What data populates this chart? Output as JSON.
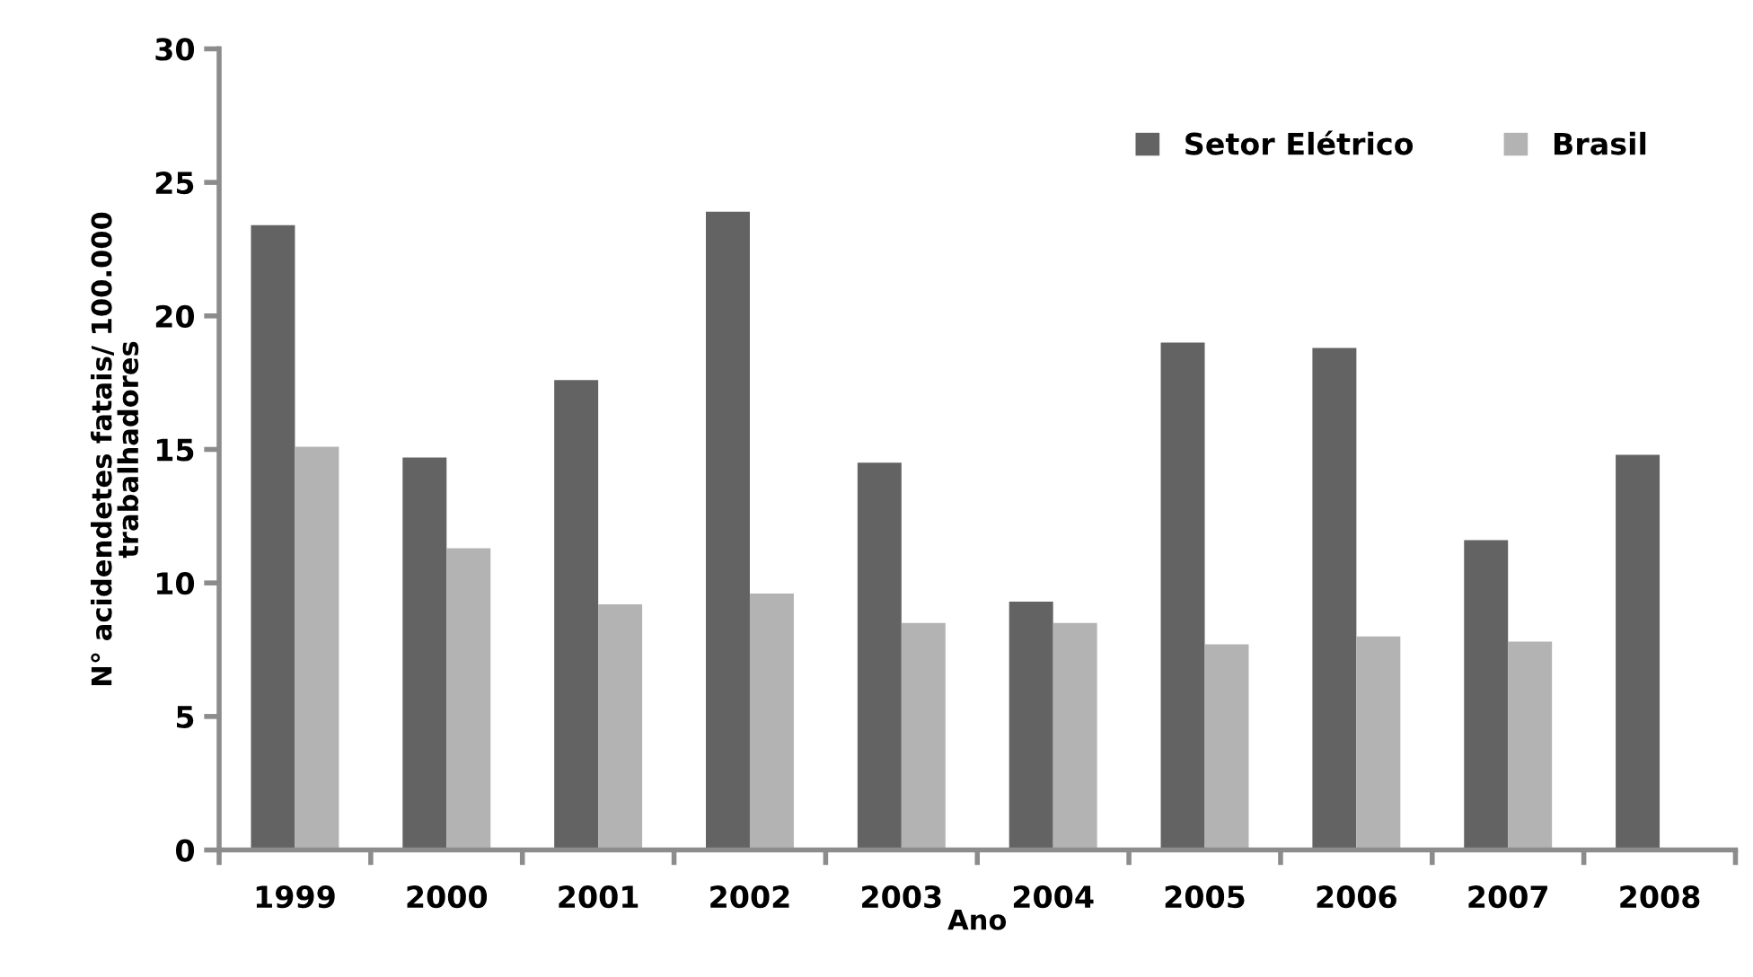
{
  "chart_data": {
    "type": "bar",
    "xlabel": "Ano",
    "ylabel": "N° acidendetes fatais/ 100.000\ntrabalhadores",
    "categories": [
      "1999",
      "2000",
      "2001",
      "2002",
      "2003",
      "2004",
      "2005",
      "2006",
      "2007",
      "2008"
    ],
    "series": [
      {
        "name": "Setor Elétrico",
        "color": "#636363",
        "values": [
          23.4,
          14.7,
          17.6,
          23.9,
          14.5,
          9.3,
          19.0,
          18.8,
          11.6,
          14.8
        ]
      },
      {
        "name": "Brasil",
        "color": "#b3b3b3",
        "values": [
          15.1,
          11.3,
          9.2,
          9.6,
          8.5,
          8.5,
          7.7,
          8.0,
          7.8,
          null
        ]
      }
    ],
    "ylim": [
      0,
      30
    ],
    "yticks": [
      0,
      5,
      10,
      15,
      20,
      25,
      30
    ],
    "grid": false,
    "legend": "top right"
  }
}
